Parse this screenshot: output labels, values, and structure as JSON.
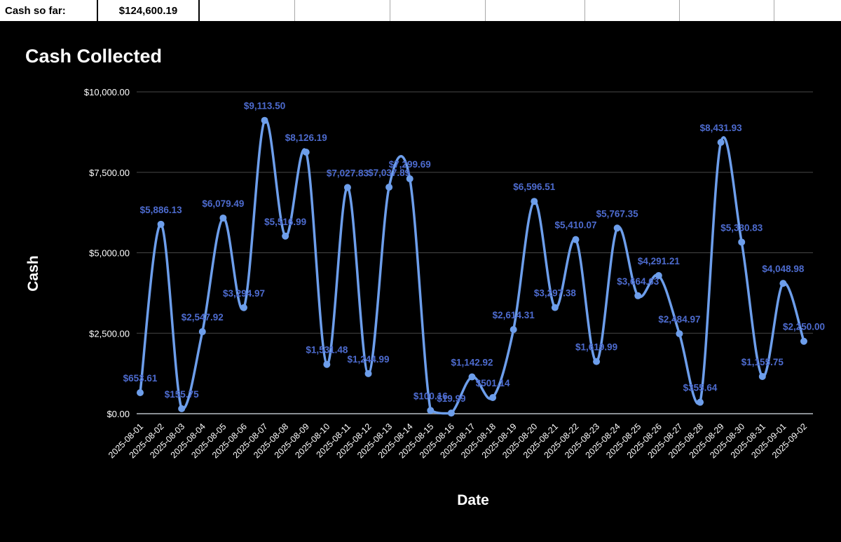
{
  "header_row": {
    "label_cell": "Cash so far:",
    "value_cell": "$124,600.19"
  },
  "chart": {
    "title": "Cash Collected",
    "y_axis_title": "Cash",
    "x_axis_title": "Date"
  },
  "chart_data": {
    "type": "line",
    "title": "Cash Collected",
    "xlabel": "Date",
    "ylabel": "Cash",
    "ylim": [
      0,
      10000
    ],
    "y_tick_interval": 2500,
    "y_ticks": [
      "$0.00",
      "$2,500.00",
      "$5,000.00",
      "$7,500.00",
      "$10,000.00"
    ],
    "grid": "horizontal",
    "legend": "none",
    "smooth": true,
    "categories": [
      "2025-08-01",
      "2025-08-02",
      "2025-08-03",
      "2025-08-04",
      "2025-08-05",
      "2025-08-06",
      "2025-08-07",
      "2025-08-08",
      "2025-08-09",
      "2025-08-10",
      "2025-08-11",
      "2025-08-12",
      "2025-08-13",
      "2025-08-14",
      "2025-08-15",
      "2025-08-16",
      "2025-08-17",
      "2025-08-18",
      "2025-08-19",
      "2025-08-20",
      "2025-08-21",
      "2025-08-22",
      "2025-08-23",
      "2025-08-24",
      "2025-08-25",
      "2025-08-26",
      "2025-08-27",
      "2025-08-28",
      "2025-08-29",
      "2025-08-30",
      "2025-08-31",
      "2025-09-01",
      "2025-09-02"
    ],
    "values": [
      653.61,
      5886.13,
      155.75,
      2547.92,
      6079.49,
      3294.97,
      9113.5,
      5516.99,
      8126.19,
      1531.48,
      7027.83,
      1244.99,
      7037.89,
      7299.69,
      100.16,
      19.99,
      1142.92,
      501.14,
      2614.31,
      6596.51,
      3297.38,
      5410.07,
      1619.99,
      5767.35,
      3664.63,
      4291.21,
      2484.97,
      355.64,
      8431.93,
      5330.83,
      1155.75,
      4048.98,
      2250.0
    ],
    "labels": [
      "$653.61",
      "$5,886.13",
      "$155.75",
      "$2,547.92",
      "$6,079.49",
      "$3,294.97",
      "$9,113.50",
      "$5,516.99",
      "$8,126.19",
      "$1,531.48",
      "$7,027.83",
      "$1,244.99",
      "$7,037.89",
      "$7,299.69",
      "$100.16",
      "$19.99",
      "$1,142.92",
      "$501.14",
      "$2,614.31",
      "$6,596.51",
      "$3,297.38",
      "$5,410.07",
      "$1,619.99",
      "$5,767.35",
      "$3,664.63",
      "$4,291.21",
      "$2,484.97",
      "$355.64",
      "$8,431.93",
      "$5,330.83",
      "$1,155.75",
      "$4,048.98",
      "$2,250.00"
    ],
    "colors": {
      "background": "#000000",
      "line": "#6d9eeb",
      "point": "#6d9eeb",
      "data_label": "#4d6bce",
      "axis_text": "#ffffff",
      "grid": "#474747",
      "zero_line": "#8a8f94"
    }
  }
}
